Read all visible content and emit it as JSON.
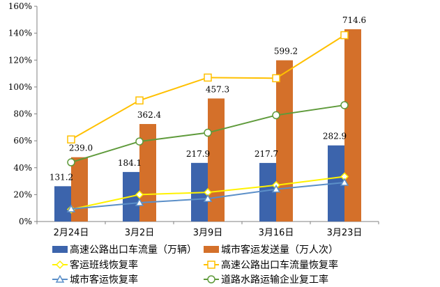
{
  "chart_data": {
    "type": "bar+line",
    "categories": [
      "2月24日",
      "3月2日",
      "3月9日",
      "3月16日",
      "3月23日"
    ],
    "y_ticks": [
      "0%",
      "20%",
      "40%",
      "60%",
      "80%",
      "100%",
      "120%",
      "140%",
      "160%"
    ],
    "ylim": [
      0,
      160
    ],
    "secondary_ylim": [
      0,
      800
    ],
    "grid": false,
    "legend_placement": "bottom",
    "bar_series": [
      {
        "name": "高速公路出口车流量（万辆）",
        "color": "#3C64AC",
        "values": [
          131.2,
          184.1,
          217.9,
          217.7,
          282.9
        ],
        "labels": [
          "131.2",
          "184.1",
          "217.9",
          "217.7",
          "282.9"
        ]
      },
      {
        "name": "城市客运发送量（万人次）",
        "color": "#D4702A",
        "values": [
          239.0,
          362.4,
          457.3,
          599.2,
          714.6
        ],
        "labels": [
          "239.0",
          "362.4",
          "457.3",
          "599.2",
          "714.6"
        ]
      }
    ],
    "line_series": [
      {
        "name": "客运班线恢复率",
        "color": "#FFF200",
        "marker": "diamond",
        "values": [
          9,
          20,
          21.7,
          27,
          33.4
        ]
      },
      {
        "name": "高速公路出口车流量恢复率",
        "color": "#FFC000",
        "marker": "square",
        "values": [
          61,
          90,
          107,
          106.5,
          138.5
        ]
      },
      {
        "name": "城市客运恢复率",
        "color": "#5B8FC8",
        "marker": "triangle",
        "values": [
          9.3,
          14,
          17,
          24,
          29
        ]
      },
      {
        "name": "道路水路运输企业复工率",
        "color": "#5E9A3A",
        "marker": "circle",
        "values": [
          44,
          59.5,
          66,
          79,
          86.5
        ]
      }
    ]
  }
}
